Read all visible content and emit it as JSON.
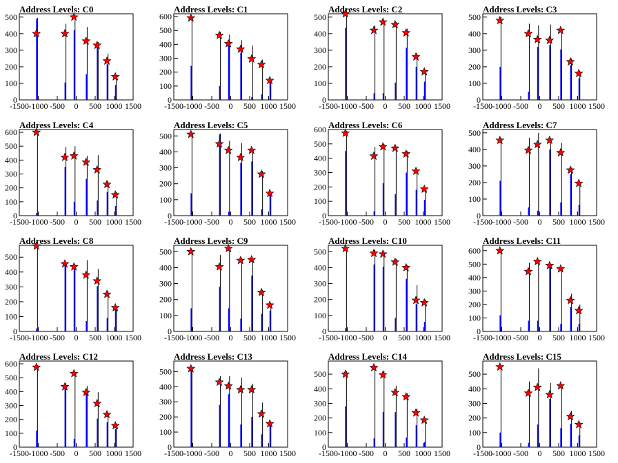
{
  "chart_data": {
    "type": "bar",
    "grid": false,
    "legend": "none",
    "colors": {
      "bars_blue": "#0000ff",
      "bars_black": "#000000",
      "marker_fill": "#ff0000",
      "marker_stroke": "#000000"
    },
    "xlim": [
      -1500,
      1500
    ],
    "xticks": [
      -1500,
      -1000,
      -500,
      0,
      500,
      1000,
      1500
    ],
    "xtick_labels": [
      "-1500",
      "-1000",
      "-500",
      "0",
      "500",
      "1000",
      "1500"
    ],
    "marker_x": [
      -1050,
      -300,
      -60,
      260,
      550,
      810,
      1030
    ],
    "panels": [
      {
        "title": "Address Levels: C0",
        "ymax": 520,
        "yticks": [
          0,
          100,
          200,
          300,
          400,
          500
        ],
        "markers": [
          400,
          400,
          500,
          355,
          330,
          235,
          140
        ],
        "black": [
          [
            -1050,
            495
          ],
          [
            -300,
            460
          ],
          [
            -60,
            480
          ],
          [
            260,
            440
          ],
          [
            550,
            350
          ],
          [
            810,
            280
          ],
          [
            1030,
            150
          ]
        ],
        "blue": [
          [
            -1050,
            490
          ],
          [
            -300,
            105
          ],
          [
            -60,
            420
          ],
          [
            260,
            155
          ],
          [
            550,
            320
          ],
          [
            810,
            215
          ],
          [
            1030,
            90
          ]
        ]
      },
      {
        "title": "Address Levels: C1",
        "ymax": 620,
        "yticks": [
          0,
          100,
          200,
          300,
          400,
          500,
          600
        ],
        "markers": [
          590,
          465,
          405,
          365,
          295,
          255,
          140
        ],
        "black": [
          [
            -1050,
            600
          ],
          [
            -300,
            490
          ],
          [
            -60,
            470
          ],
          [
            260,
            430
          ],
          [
            550,
            390
          ],
          [
            810,
            290
          ],
          [
            1030,
            150
          ]
        ],
        "blue": [
          [
            -1050,
            245
          ],
          [
            -300,
            100
          ],
          [
            -60,
            390
          ],
          [
            260,
            340
          ],
          [
            550,
            20
          ],
          [
            810,
            40
          ],
          [
            1030,
            130
          ]
        ]
      },
      {
        "title": "Address Levels: C2",
        "ymax": 520,
        "yticks": [
          0,
          100,
          200,
          300,
          400,
          500
        ],
        "markers": [
          520,
          420,
          470,
          455,
          405,
          260,
          170
        ],
        "black": [
          [
            -1050,
            520
          ],
          [
            -300,
            450
          ],
          [
            -60,
            480
          ],
          [
            260,
            470
          ],
          [
            550,
            430
          ],
          [
            810,
            280
          ],
          [
            1030,
            175
          ]
        ],
        "blue": [
          [
            -1050,
            435
          ],
          [
            -300,
            40
          ],
          [
            -60,
            40
          ],
          [
            260,
            105
          ],
          [
            550,
            315
          ],
          [
            810,
            200
          ],
          [
            1030,
            110
          ]
        ]
      },
      {
        "title": "Address Levels: C3",
        "ymax": 520,
        "yticks": [
          0,
          100,
          200,
          300,
          400,
          500
        ],
        "markers": [
          480,
          400,
          365,
          360,
          420,
          230,
          160
        ],
        "black": [
          [
            -1050,
            500
          ],
          [
            -300,
            460
          ],
          [
            -60,
            450
          ],
          [
            260,
            455
          ],
          [
            550,
            430
          ],
          [
            810,
            250
          ],
          [
            1030,
            175
          ]
        ],
        "blue": [
          [
            -1050,
            200
          ],
          [
            -300,
            50
          ],
          [
            -60,
            320
          ],
          [
            260,
            330
          ],
          [
            550,
            305
          ],
          [
            810,
            210
          ],
          [
            1030,
            130
          ]
        ]
      },
      {
        "title": "Address Levels: C4",
        "ymax": 620,
        "yticks": [
          0,
          100,
          200,
          300,
          400,
          500,
          600
        ],
        "markers": [
          600,
          420,
          430,
          385,
          330,
          225,
          150
        ],
        "black": [
          [
            -1050,
            610
          ],
          [
            -300,
            495
          ],
          [
            -60,
            500
          ],
          [
            260,
            430
          ],
          [
            550,
            435
          ],
          [
            810,
            245
          ],
          [
            1030,
            170
          ]
        ],
        "blue": [
          [
            -1050,
            20
          ],
          [
            -300,
            350
          ],
          [
            -60,
            100
          ],
          [
            260,
            265
          ],
          [
            550,
            110
          ],
          [
            810,
            170
          ],
          [
            1030,
            70
          ]
        ]
      },
      {
        "title": "Address Levels: C5",
        "ymax": 540,
        "yticks": [
          0,
          100,
          200,
          300,
          400,
          500
        ],
        "markers": [
          510,
          450,
          410,
          365,
          410,
          260,
          140
        ],
        "black": [
          [
            -1050,
            520
          ],
          [
            -300,
            515
          ],
          [
            -60,
            470
          ],
          [
            260,
            455
          ],
          [
            550,
            405
          ],
          [
            810,
            280
          ],
          [
            1030,
            150
          ]
        ],
        "blue": [
          [
            -1050,
            140
          ],
          [
            -300,
            510
          ],
          [
            -60,
            25
          ],
          [
            260,
            330
          ],
          [
            550,
            340
          ],
          [
            810,
            40
          ],
          [
            1030,
            130
          ]
        ]
      },
      {
        "title": "Address Levels: C6",
        "ymax": 600,
        "yticks": [
          0,
          100,
          200,
          300,
          400,
          500,
          600
        ],
        "markers": [
          575,
          415,
          480,
          470,
          430,
          310,
          185
        ],
        "black": [
          [
            -1050,
            590
          ],
          [
            -300,
            480
          ],
          [
            -60,
            500
          ],
          [
            260,
            480
          ],
          [
            550,
            450
          ],
          [
            810,
            320
          ],
          [
            1030,
            190
          ]
        ],
        "blue": [
          [
            -1050,
            450
          ],
          [
            -300,
            30
          ],
          [
            -60,
            225
          ],
          [
            260,
            150
          ],
          [
            550,
            300
          ],
          [
            810,
            180
          ],
          [
            1030,
            110
          ]
        ]
      },
      {
        "title": "Address Levels: C7",
        "ymax": 520,
        "yticks": [
          0,
          100,
          200,
          300,
          400,
          500
        ],
        "markers": [
          455,
          395,
          430,
          455,
          380,
          275,
          195
        ],
        "black": [
          [
            -1050,
            470
          ],
          [
            -300,
            470
          ],
          [
            -60,
            500
          ],
          [
            260,
            470
          ],
          [
            550,
            440
          ],
          [
            810,
            290
          ],
          [
            1030,
            200
          ]
        ],
        "blue": [
          [
            -1050,
            210
          ],
          [
            -300,
            50
          ],
          [
            -60,
            30
          ],
          [
            260,
            400
          ],
          [
            550,
            80
          ],
          [
            810,
            250
          ],
          [
            1030,
            65
          ]
        ]
      },
      {
        "title": "Address Levels: C8",
        "ymax": 580,
        "yticks": [
          0,
          100,
          200,
          300,
          400,
          500
        ],
        "markers": [
          575,
          455,
          435,
          380,
          340,
          250,
          160
        ],
        "black": [
          [
            -1050,
            580
          ],
          [
            -300,
            460
          ],
          [
            -60,
            450
          ],
          [
            260,
            480
          ],
          [
            550,
            420
          ],
          [
            810,
            270
          ],
          [
            1030,
            170
          ]
        ],
        "blue": [
          [
            -1050,
            20
          ],
          [
            -300,
            440
          ],
          [
            -60,
            420
          ],
          [
            260,
            70
          ],
          [
            550,
            305
          ],
          [
            810,
            90
          ],
          [
            1030,
            150
          ]
        ]
      },
      {
        "title": "Address Levels: C9",
        "ymax": 540,
        "yticks": [
          0,
          100,
          200,
          300,
          400,
          500
        ],
        "markers": [
          500,
          405,
          520,
          445,
          450,
          245,
          165
        ],
        "black": [
          [
            -1050,
            510
          ],
          [
            -300,
            480
          ],
          [
            -60,
            520
          ],
          [
            260,
            460
          ],
          [
            550,
            460
          ],
          [
            810,
            260
          ],
          [
            1030,
            175
          ]
        ],
        "blue": [
          [
            -1050,
            145
          ],
          [
            -300,
            280
          ],
          [
            -60,
            145
          ],
          [
            260,
            80
          ],
          [
            550,
            350
          ],
          [
            810,
            110
          ],
          [
            1030,
            130
          ]
        ]
      },
      {
        "title": "Address Levels: C10",
        "ymax": 540,
        "yticks": [
          0,
          100,
          200,
          300,
          400,
          500
        ],
        "markers": [
          520,
          490,
          485,
          435,
          400,
          195,
          180
        ],
        "black": [
          [
            -1050,
            520
          ],
          [
            -300,
            510
          ],
          [
            -60,
            500
          ],
          [
            260,
            455
          ],
          [
            550,
            415
          ],
          [
            810,
            290
          ],
          [
            1030,
            200
          ]
        ],
        "blue": [
          [
            -1050,
            20
          ],
          [
            -300,
            420
          ],
          [
            -60,
            405
          ],
          [
            260,
            85
          ],
          [
            550,
            330
          ],
          [
            810,
            170
          ],
          [
            1030,
            60
          ]
        ]
      },
      {
        "title": "Address Levels: C11",
        "ymax": 640,
        "yticks": [
          0,
          100,
          200,
          300,
          400,
          500,
          600
        ],
        "markers": [
          600,
          445,
          520,
          490,
          465,
          230,
          155
        ],
        "black": [
          [
            -1050,
            610
          ],
          [
            -300,
            510
          ],
          [
            -60,
            530
          ],
          [
            260,
            500
          ],
          [
            550,
            460
          ],
          [
            810,
            280
          ],
          [
            1030,
            200
          ]
        ],
        "blue": [
          [
            -1050,
            120
          ],
          [
            -300,
            80
          ],
          [
            -60,
            80
          ],
          [
            260,
            480
          ],
          [
            550,
            55
          ],
          [
            810,
            180
          ],
          [
            1030,
            55
          ]
        ]
      },
      {
        "title": "Address Levels: C12",
        "ymax": 620,
        "yticks": [
          0,
          100,
          200,
          300,
          400,
          500,
          600
        ],
        "markers": [
          575,
          435,
          530,
          395,
          315,
          235,
          155
        ],
        "black": [
          [
            -1050,
            590
          ],
          [
            -300,
            460
          ],
          [
            -60,
            540
          ],
          [
            260,
            440
          ],
          [
            550,
            395
          ],
          [
            810,
            250
          ],
          [
            1030,
            170
          ]
        ],
        "blue": [
          [
            -1050,
            120
          ],
          [
            -300,
            420
          ],
          [
            -60,
            60
          ],
          [
            260,
            380
          ],
          [
            550,
            205
          ],
          [
            810,
            180
          ],
          [
            1030,
            130
          ]
        ]
      },
      {
        "title": "Address Levels: C13",
        "ymax": 570,
        "yticks": [
          0,
          100,
          200,
          300,
          400,
          500
        ],
        "markers": [
          520,
          430,
          405,
          380,
          380,
          220,
          155
        ],
        "black": [
          [
            -1050,
            530
          ],
          [
            -300,
            470
          ],
          [
            -60,
            470
          ],
          [
            260,
            460
          ],
          [
            550,
            420
          ],
          [
            810,
            295
          ],
          [
            1030,
            170
          ]
        ],
        "blue": [
          [
            -1050,
            520
          ],
          [
            -300,
            280
          ],
          [
            -60,
            350
          ],
          [
            260,
            150
          ],
          [
            550,
            200
          ],
          [
            810,
            85
          ],
          [
            1030,
            150
          ]
        ]
      },
      {
        "title": "Address Levels: C14",
        "ymax": 590,
        "yticks": [
          0,
          100,
          200,
          300,
          400,
          500
        ],
        "markers": [
          500,
          545,
          495,
          375,
          345,
          235,
          185
        ],
        "black": [
          [
            -1050,
            520
          ],
          [
            -300,
            560
          ],
          [
            -60,
            520
          ],
          [
            260,
            420
          ],
          [
            550,
            370
          ],
          [
            810,
            260
          ],
          [
            1030,
            195
          ]
        ],
        "blue": [
          [
            -1050,
            280
          ],
          [
            -300,
            60
          ],
          [
            -60,
            240
          ],
          [
            260,
            240
          ],
          [
            550,
            65
          ],
          [
            810,
            150
          ],
          [
            1030,
            35
          ]
        ]
      },
      {
        "title": "Address Levels: C15",
        "ymax": 590,
        "yticks": [
          0,
          100,
          200,
          300,
          400,
          500
        ],
        "markers": [
          550,
          370,
          410,
          360,
          420,
          210,
          155
        ],
        "black": [
          [
            -1050,
            560
          ],
          [
            -300,
            450
          ],
          [
            -60,
            540
          ],
          [
            260,
            440
          ],
          [
            550,
            430
          ],
          [
            810,
            250
          ],
          [
            1030,
            170
          ]
        ],
        "blue": [
          [
            -1050,
            100
          ],
          [
            -300,
            30
          ],
          [
            -60,
            155
          ],
          [
            260,
            330
          ],
          [
            550,
            130
          ],
          [
            810,
            160
          ],
          [
            1030,
            80
          ]
        ]
      }
    ]
  }
}
